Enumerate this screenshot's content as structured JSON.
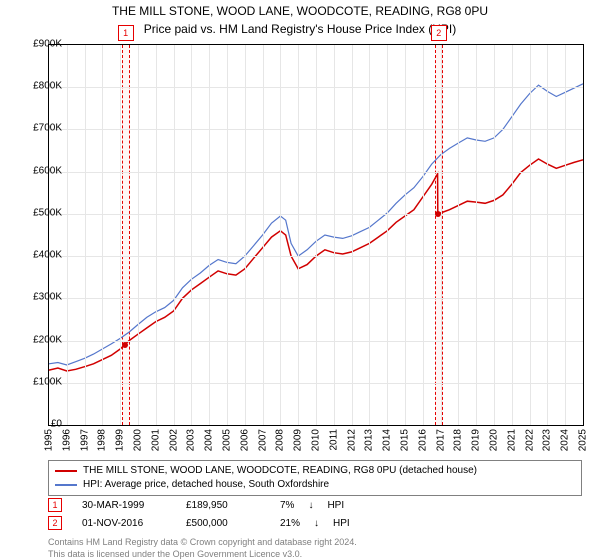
{
  "title_line1": "THE MILL STONE, WOOD LANE, WOODCOTE, READING, RG8 0PU",
  "title_line2": "Price paid vs. HM Land Registry's House Price Index (HPI)",
  "chart": {
    "type": "line",
    "background_color": "#ffffff",
    "grid_color": "#e6e6e6",
    "border_color": "#000000",
    "ylim": [
      0,
      900
    ],
    "ytick_step": 100,
    "y_unit_prefix": "£",
    "y_unit_suffix": "K",
    "x_years": [
      1995,
      1996,
      1997,
      1998,
      1999,
      2000,
      2001,
      2002,
      2003,
      2004,
      2005,
      2006,
      2007,
      2008,
      2009,
      2010,
      2011,
      2012,
      2013,
      2014,
      2015,
      2016,
      2017,
      2018,
      2019,
      2020,
      2021,
      2022,
      2023,
      2024,
      2025
    ],
    "x_label_fontsize": 10,
    "y_label_fontsize": 10,
    "series": [
      {
        "name": "red",
        "color": "#d10000",
        "width": 1.5,
        "label": "THE MILL STONE, WOOD LANE, WOODCOTE, READING, RG8 0PU (detached house)",
        "data": [
          [
            1995.0,
            130
          ],
          [
            1995.5,
            135
          ],
          [
            1996.0,
            128
          ],
          [
            1996.5,
            132
          ],
          [
            1997.0,
            138
          ],
          [
            1997.5,
            145
          ],
          [
            1998.0,
            155
          ],
          [
            1998.5,
            165
          ],
          [
            1999.0,
            180
          ],
          [
            1999.25,
            190
          ],
          [
            1999.5,
            200
          ],
          [
            2000.0,
            215
          ],
          [
            2000.5,
            230
          ],
          [
            2001.0,
            245
          ],
          [
            2001.5,
            255
          ],
          [
            2002.0,
            270
          ],
          [
            2002.5,
            300
          ],
          [
            2003.0,
            320
          ],
          [
            2003.5,
            335
          ],
          [
            2004.0,
            350
          ],
          [
            2004.5,
            365
          ],
          [
            2005.0,
            358
          ],
          [
            2005.5,
            355
          ],
          [
            2006.0,
            370
          ],
          [
            2006.5,
            395
          ],
          [
            2007.0,
            420
          ],
          [
            2007.5,
            445
          ],
          [
            2008.0,
            460
          ],
          [
            2008.3,
            450
          ],
          [
            2008.6,
            400
          ],
          [
            2009.0,
            370
          ],
          [
            2009.5,
            380
          ],
          [
            2010.0,
            400
          ],
          [
            2010.5,
            415
          ],
          [
            2011.0,
            408
          ],
          [
            2011.5,
            405
          ],
          [
            2012.0,
            410
          ],
          [
            2012.5,
            420
          ],
          [
            2013.0,
            430
          ],
          [
            2013.5,
            445
          ],
          [
            2014.0,
            460
          ],
          [
            2014.5,
            480
          ],
          [
            2015.0,
            495
          ],
          [
            2015.5,
            510
          ],
          [
            2016.0,
            540
          ],
          [
            2016.5,
            570
          ],
          [
            2016.83,
            595
          ],
          [
            2016.84,
            500
          ],
          [
            2017.0,
            502
          ],
          [
            2017.5,
            510
          ],
          [
            2018.0,
            520
          ],
          [
            2018.5,
            530
          ],
          [
            2019.0,
            528
          ],
          [
            2019.5,
            525
          ],
          [
            2020.0,
            532
          ],
          [
            2020.5,
            545
          ],
          [
            2021.0,
            570
          ],
          [
            2021.5,
            598
          ],
          [
            2022.0,
            615
          ],
          [
            2022.5,
            630
          ],
          [
            2023.0,
            618
          ],
          [
            2023.5,
            608
          ],
          [
            2024.0,
            615
          ],
          [
            2024.5,
            622
          ],
          [
            2025.0,
            628
          ]
        ]
      },
      {
        "name": "blue",
        "color": "#5577cc",
        "width": 1.2,
        "label": "HPI: Average price, detached house, South Oxfordshire",
        "data": [
          [
            1995.0,
            145
          ],
          [
            1995.5,
            148
          ],
          [
            1996.0,
            142
          ],
          [
            1996.5,
            150
          ],
          [
            1997.0,
            158
          ],
          [
            1997.5,
            168
          ],
          [
            1998.0,
            180
          ],
          [
            1998.5,
            192
          ],
          [
            1999.0,
            205
          ],
          [
            1999.5,
            220
          ],
          [
            2000.0,
            238
          ],
          [
            2000.5,
            255
          ],
          [
            2001.0,
            268
          ],
          [
            2001.5,
            278
          ],
          [
            2002.0,
            295
          ],
          [
            2002.5,
            325
          ],
          [
            2003.0,
            345
          ],
          [
            2003.5,
            360
          ],
          [
            2004.0,
            378
          ],
          [
            2004.5,
            392
          ],
          [
            2005.0,
            385
          ],
          [
            2005.5,
            382
          ],
          [
            2006.0,
            400
          ],
          [
            2006.5,
            425
          ],
          [
            2007.0,
            450
          ],
          [
            2007.5,
            478
          ],
          [
            2008.0,
            495
          ],
          [
            2008.3,
            485
          ],
          [
            2008.6,
            430
          ],
          [
            2009.0,
            400
          ],
          [
            2009.5,
            415
          ],
          [
            2010.0,
            435
          ],
          [
            2010.5,
            450
          ],
          [
            2011.0,
            445
          ],
          [
            2011.5,
            442
          ],
          [
            2012.0,
            448
          ],
          [
            2012.5,
            458
          ],
          [
            2013.0,
            468
          ],
          [
            2013.5,
            485
          ],
          [
            2014.0,
            502
          ],
          [
            2014.5,
            525
          ],
          [
            2015.0,
            545
          ],
          [
            2015.5,
            562
          ],
          [
            2016.0,
            588
          ],
          [
            2016.5,
            618
          ],
          [
            2017.0,
            640
          ],
          [
            2017.5,
            655
          ],
          [
            2018.0,
            668
          ],
          [
            2018.5,
            680
          ],
          [
            2019.0,
            675
          ],
          [
            2019.5,
            672
          ],
          [
            2020.0,
            680
          ],
          [
            2020.5,
            700
          ],
          [
            2021.0,
            730
          ],
          [
            2021.5,
            760
          ],
          [
            2022.0,
            785
          ],
          [
            2022.5,
            805
          ],
          [
            2023.0,
            790
          ],
          [
            2023.5,
            778
          ],
          [
            2024.0,
            788
          ],
          [
            2024.5,
            798
          ],
          [
            2025.0,
            808
          ]
        ]
      }
    ],
    "markers": [
      {
        "id": "1",
        "x": 1999.25,
        "y": 190,
        "band_color": "#fff6f5",
        "border_color": "#e60000"
      },
      {
        "id": "2",
        "x": 2016.84,
        "y": 500,
        "band_color": "#fff6f5",
        "border_color": "#e60000"
      }
    ]
  },
  "legend": {
    "border_color": "#808080",
    "items": [
      {
        "color": "#d10000",
        "label": "THE MILL STONE, WOOD LANE, WOODCOTE, READING, RG8 0PU (detached house)"
      },
      {
        "color": "#5577cc",
        "label": "HPI: Average price, detached house, South Oxfordshire"
      }
    ]
  },
  "sales": [
    {
      "badge": "1",
      "date": "30-MAR-1999",
      "price": "£189,950",
      "pct": "7%",
      "arrow": "↓",
      "suffix": "HPI"
    },
    {
      "badge": "2",
      "date": "01-NOV-2016",
      "price": "£500,000",
      "pct": "21%",
      "arrow": "↓",
      "suffix": "HPI"
    }
  ],
  "credit_line1": "Contains HM Land Registry data © Crown copyright and database right 2024.",
  "credit_line2": "This data is licensed under the Open Government Licence v3.0."
}
